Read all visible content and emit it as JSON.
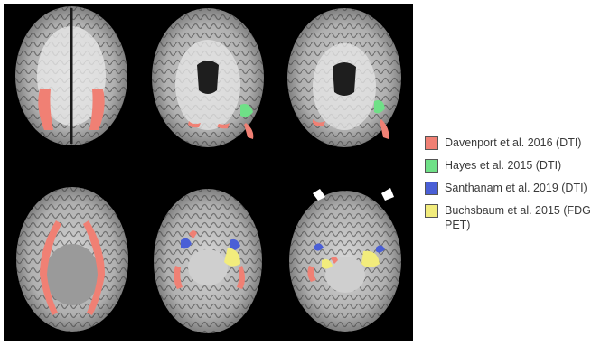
{
  "legend": {
    "items": [
      {
        "label": "Davenport et al. 2016 (DTI)",
        "color": "#f08074"
      },
      {
        "label": "Hayes et al. 2015 (DTI)",
        "color": "#6fe087"
      },
      {
        "label": "Santhanam et al. 2019 (DTI)",
        "color": "#4a5fd6"
      },
      {
        "label": "Buchsbaum et al. 2015 (FDG PET)",
        "color": "#f2ec7c"
      }
    ]
  },
  "colors": {
    "background": "#000000",
    "brain_tissue": "#b9b9b9",
    "white_matter": "#e4e4e4",
    "dark_matter": "#2a2a2a"
  }
}
